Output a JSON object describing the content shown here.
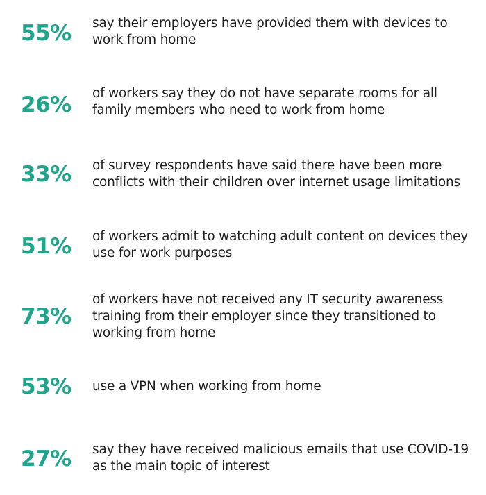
{
  "accent_color": "#1fa58b",
  "text_color": "#1f1f1f",
  "stats": [
    {
      "percent": "55%",
      "lines": [
        "say their employers have provided them with devices to",
        "work from home"
      ]
    },
    {
      "percent": "26%",
      "lines": [
        "of workers say they do not have separate rooms for all",
        "family members who need to work from home"
      ]
    },
    {
      "percent": "33%",
      "lines": [
        "of survey respondents have said there have been more",
        "conflicts with their children over internet usage limitations"
      ]
    },
    {
      "percent": "51%",
      "lines": [
        "of workers admit to watching adult content on devices they",
        "use for work purposes"
      ]
    },
    {
      "percent": "73%",
      "lines": [
        "of workers have not received any IT security awareness",
        "training from their employer since they transitioned to",
        "working from home"
      ]
    },
    {
      "percent": "53%",
      "lines": [
        "use a VPN when working from home"
      ]
    },
    {
      "percent": "27%",
      "lines": [
        "say they have received malicious emails that use COVID-19",
        "as the main topic of interest"
      ]
    }
  ]
}
